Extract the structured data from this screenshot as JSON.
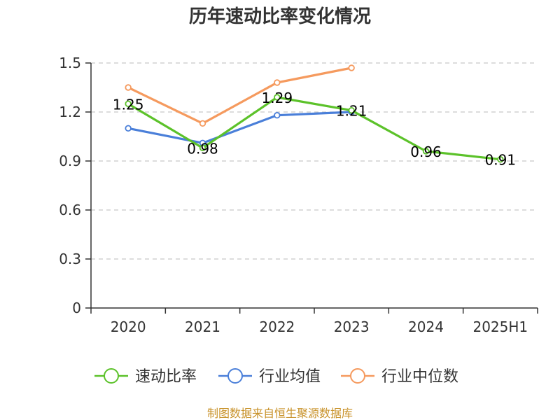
{
  "chart_data": {
    "type": "line",
    "title": "历年速动比率变化情况",
    "categories": [
      "2020",
      "2021",
      "2022",
      "2023",
      "2024",
      "2025H1"
    ],
    "ylim": [
      0,
      1.5
    ],
    "yticks": [
      "0",
      "0.3",
      "0.6",
      "0.9",
      "1.2",
      "1.5"
    ],
    "grid": true,
    "legend_position": "bottom",
    "series": [
      {
        "name": "速动比率",
        "color": "#5cc22a",
        "values": [
          1.25,
          0.98,
          1.29,
          1.21,
          0.96,
          0.91
        ],
        "labels": [
          "1.25",
          "0.98",
          "1.29",
          "1.21",
          "0.96",
          "0.91"
        ]
      },
      {
        "name": "行业均值",
        "color": "#4a7fd9",
        "values": [
          1.1,
          1.01,
          1.18,
          1.2,
          null,
          null
        ]
      },
      {
        "name": "行业中位数",
        "color": "#f59a5e",
        "values": [
          1.35,
          1.13,
          1.38,
          1.47,
          null,
          null
        ]
      }
    ],
    "source": "制图数据来自恒生聚源数据库"
  }
}
